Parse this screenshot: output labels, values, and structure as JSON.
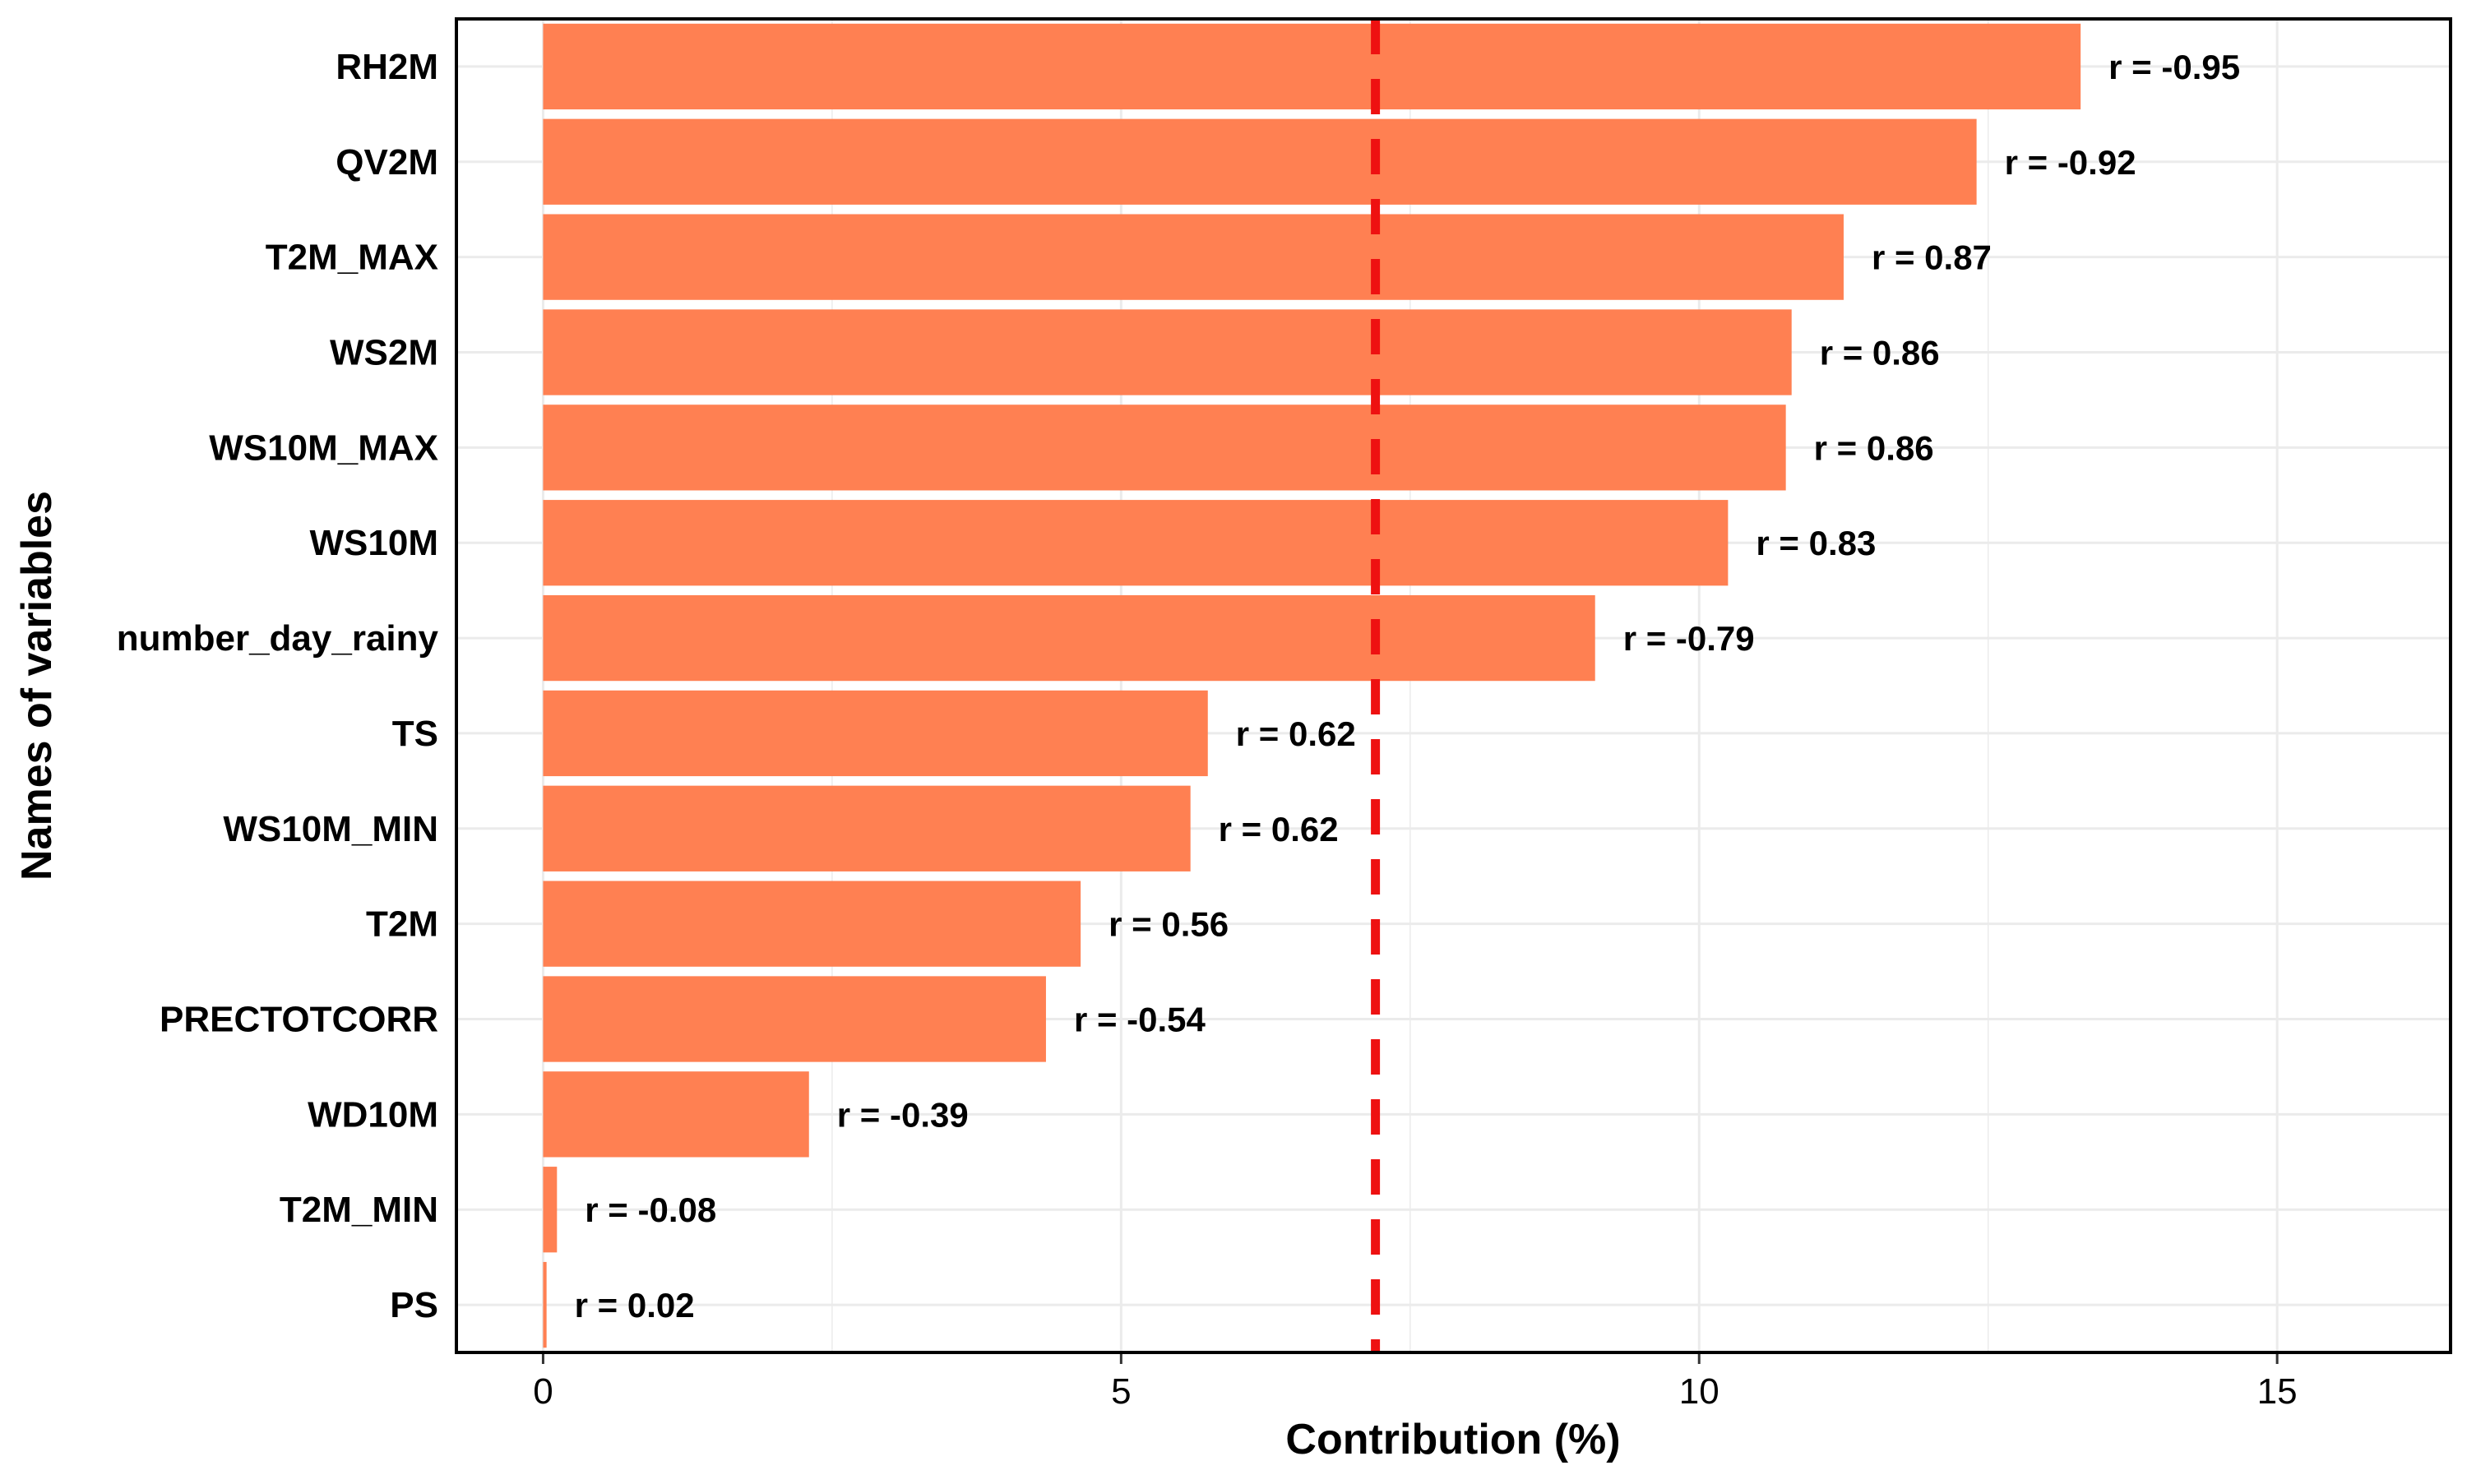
{
  "chart_data": {
    "type": "bar",
    "orientation": "horizontal",
    "categories": [
      "RH2M",
      "QV2M",
      "T2M_MAX",
      "WS2M",
      "WS10M_MAX",
      "WS10M",
      "number_day_rainy",
      "TS",
      "WS10M_MIN",
      "T2M",
      "PRECTOTCORR",
      "WD10M",
      "T2M_MIN",
      "PS"
    ],
    "values": [
      13.3,
      12.4,
      11.25,
      10.8,
      10.75,
      10.25,
      9.1,
      5.75,
      5.6,
      4.65,
      4.35,
      2.3,
      0.12,
      0.03
    ],
    "data_labels": [
      "r = -0.95",
      "r = -0.92",
      "r = 0.87",
      "r = 0.86",
      "r = 0.86",
      "r = 0.83",
      "r = -0.79",
      "r = 0.62",
      "r = 0.62",
      "r = 0.56",
      "r = -0.54",
      "r = -0.39",
      "r = -0.08",
      "r = 0.02"
    ],
    "reference_line": {
      "value": 7.2,
      "style": "dashed",
      "color": "#ee1111"
    },
    "xlabel": "Contribution (%)",
    "ylabel": "Names of variables",
    "xlim": [
      -0.75,
      16.5
    ],
    "xticks": [
      0,
      5,
      10,
      15
    ],
    "xtick_labels": [
      "0",
      "5",
      "10",
      "15"
    ],
    "grid": true,
    "legend": "none",
    "bar_color": "#ff8052"
  }
}
